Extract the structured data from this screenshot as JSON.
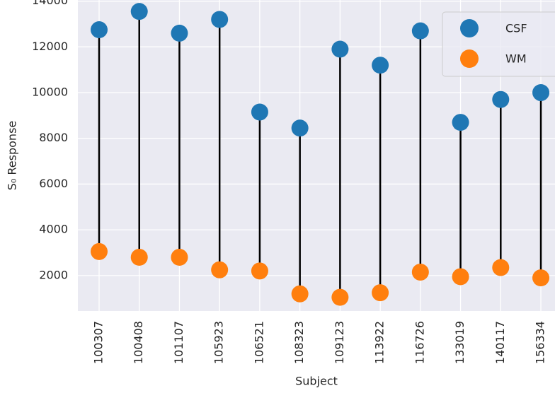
{
  "chart_data": {
    "type": "dumbbell",
    "xlabel": "Subject",
    "ylabel": "S₀ Response",
    "categories": [
      "100307",
      "100408",
      "101107",
      "105923",
      "106521",
      "108323",
      "109123",
      "113922",
      "116726",
      "133019",
      "140117",
      "156334"
    ],
    "series": [
      {
        "name": "CSF",
        "color": "#1f77b4",
        "values": [
          12750,
          13550,
          12600,
          13200,
          9150,
          8450,
          11900,
          11200,
          12700,
          8700,
          9700,
          10000
        ]
      },
      {
        "name": "WM",
        "color": "#ff7f0e",
        "values": [
          3050,
          2800,
          2800,
          2250,
          2200,
          1200,
          1050,
          1250,
          2150,
          1950,
          2350,
          1900
        ]
      }
    ],
    "stem_color": "#000000",
    "ylim": [
      450,
      14050
    ],
    "yticks": [
      2000,
      4000,
      6000,
      8000,
      10000,
      12000,
      14000
    ],
    "grid": true,
    "legend": "upper right"
  }
}
